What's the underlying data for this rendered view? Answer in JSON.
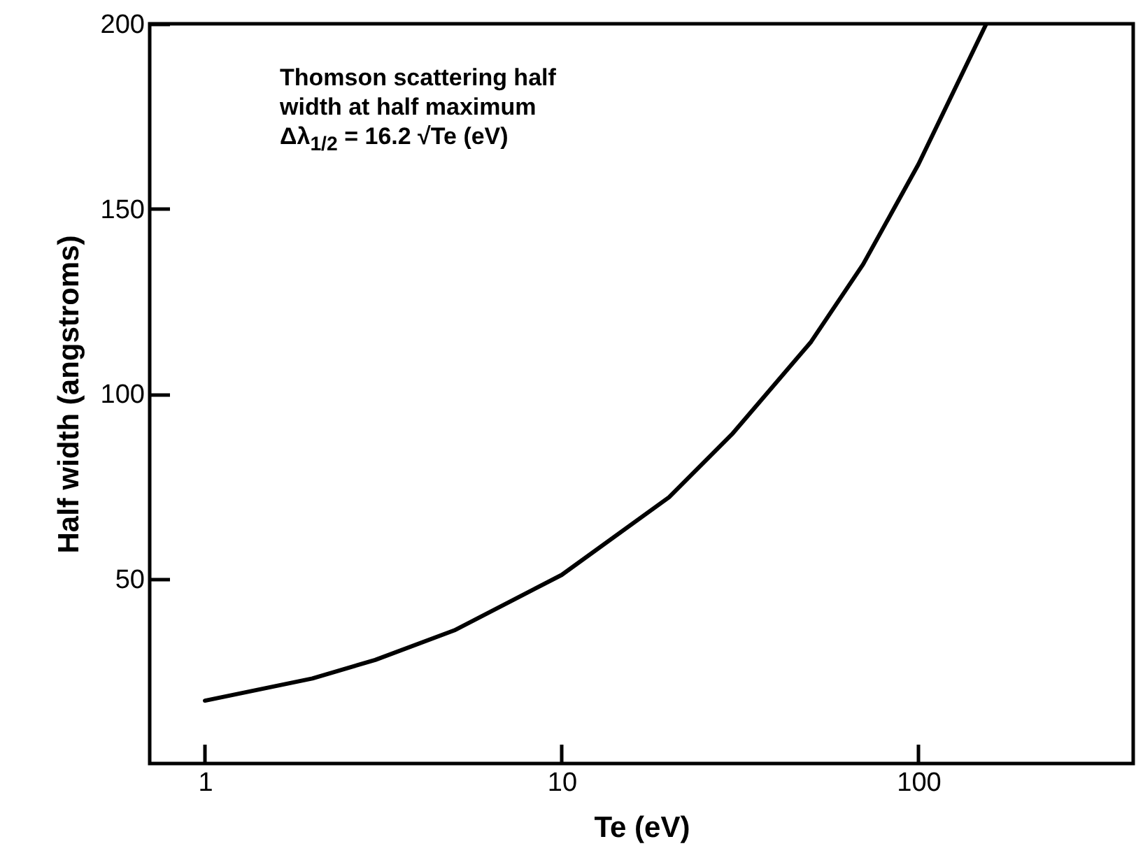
{
  "chart_data": {
    "type": "line",
    "xlabel": "Te (eV)",
    "ylabel": "Half width (angstroms)",
    "annotations": [
      "Thomson scattering half\nwidth at half maximum",
      "Δλ$_{1/2}$ = 16.2 √Te (eV)"
    ],
    "log": "x",
    "xlim": [
      0.7,
      400
    ],
    "xticks": [
      1,
      10,
      100
    ],
    "ylim": [
      0,
      200
    ],
    "yticks": [
      50,
      100,
      150,
      200
    ],
    "grid": false,
    "marker": "none",
    "line_style": "solid",
    "series": [
      {
        "color": "#000000",
        "x": [
          1,
          2,
          3,
          5,
          10,
          20,
          30,
          50,
          70,
          100,
          155
        ],
        "values": [
          17,
          23,
          28,
          36,
          51,
          72,
          89,
          114,
          135,
          162,
          200
        ]
      }
    ]
  }
}
